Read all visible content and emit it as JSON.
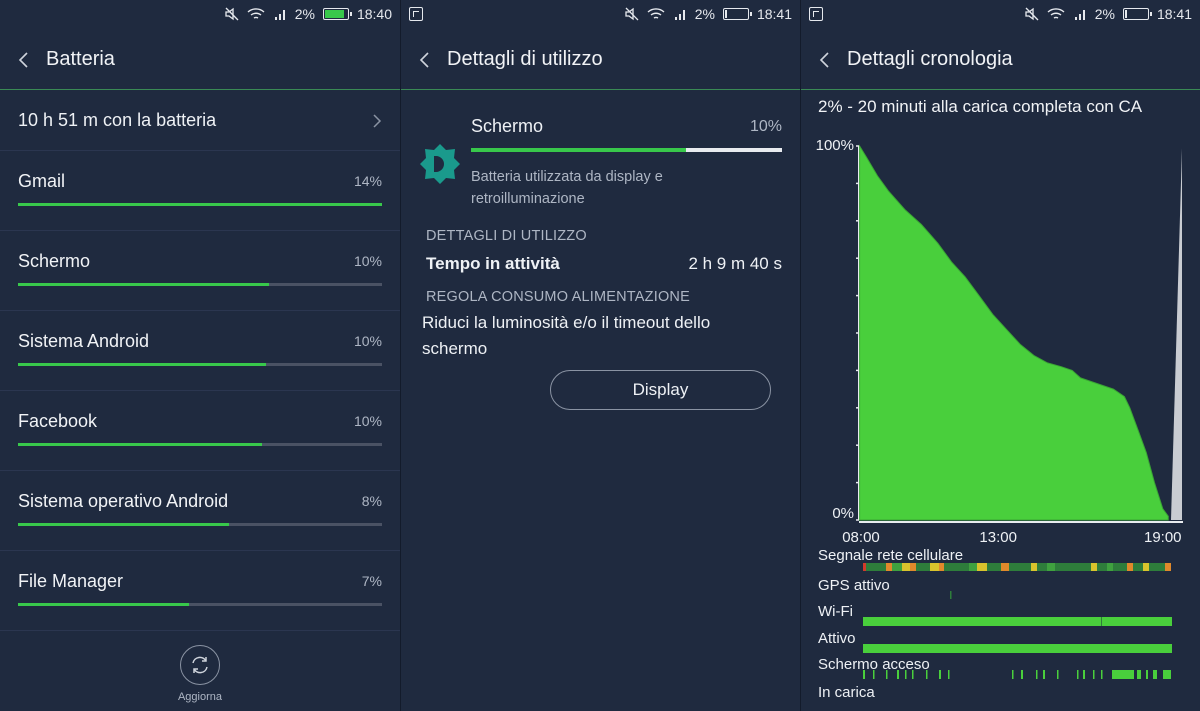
{
  "status": {
    "battery_pct": "2%",
    "panels": [
      {
        "time": "18:40",
        "battery_level": 0.9,
        "battery_color": "#38c84b"
      },
      {
        "time": "18:41",
        "battery_level": 0.02,
        "battery_color": "#e6e9ee"
      },
      {
        "time": "18:41",
        "battery_level": 0.02,
        "battery_color": "#e6e9ee"
      }
    ]
  },
  "colors": {
    "accent": "#38c84b",
    "background": "#1f2a3f",
    "muted_text": "#aeb6c4",
    "track": "#4a5264"
  },
  "battery_screen": {
    "title": "Batteria",
    "summary": "10 h 51 m con la batteria",
    "apps": [
      {
        "name": "Gmail",
        "percent": "14%",
        "level": 1.0
      },
      {
        "name": "Schermo",
        "percent": "10%",
        "level": 0.69
      },
      {
        "name": "Sistema Android",
        "percent": "10%",
        "level": 0.68
      },
      {
        "name": "Facebook",
        "percent": "10%",
        "level": 0.67
      },
      {
        "name": "Sistema operativo Android",
        "percent": "8%",
        "level": 0.58
      },
      {
        "name": "File Manager",
        "percent": "7%",
        "level": 0.47
      }
    ],
    "refresh_label": "Aggiorna"
  },
  "usage_screen": {
    "title": "Dettagli di utilizzo",
    "item_name": "Schermo",
    "item_percent": "10%",
    "item_level": 0.69,
    "item_description": "Batteria utilizzata da display e retroilluminazione",
    "section_usage": "DETTAGLI DI UTILIZZO",
    "active_time_label": "Tempo in attività",
    "active_time_value": "2 h 9 m 40 s",
    "section_power": "REGOLA CONSUMO ALIMENTAZIONE",
    "power_tip": "Riduci la luminosità e/o il timeout dello schermo",
    "display_button": "Display"
  },
  "history_screen": {
    "title": "Dettagli cronologia",
    "summary": "2% - 20 minuti alla carica completa con CA",
    "y_max_label": "100%",
    "y_min_label": "0%",
    "x_labels": [
      "08:00",
      "13:00",
      "19:00"
    ],
    "rows": [
      "Segnale rete cellulare",
      "GPS attivo",
      "Wi-Fi",
      "Attivo",
      "Schermo acceso",
      "In carica"
    ]
  },
  "chart_data": {
    "type": "area",
    "title": "",
    "xlabel": "",
    "ylabel": "",
    "x_ticks": [
      "08:00",
      "13:00",
      "19:00"
    ],
    "y_ticks": [
      "0%",
      "100%"
    ],
    "ylim": [
      0,
      100
    ],
    "xlim_hours": [
      8,
      19.3
    ],
    "series": [
      {
        "name": "",
        "color": "#49cf3c",
        "x_hours": [
          7.95,
          8.2,
          8.6,
          9.0,
          9.6,
          10.2,
          10.8,
          11.3,
          11.8,
          12.3,
          12.8,
          13.3,
          13.8,
          14.3,
          14.8,
          15.3,
          15.7,
          16.0,
          16.4,
          16.8,
          17.2,
          17.6,
          17.8,
          18.1,
          18.4,
          18.7,
          19.0,
          19.2
        ],
        "values": [
          100,
          97,
          92,
          88,
          83,
          79,
          74,
          69,
          65,
          60,
          55,
          51,
          47,
          44,
          42,
          41,
          40,
          38,
          37,
          36,
          35,
          33,
          30,
          24,
          18,
          10,
          3,
          1
        ]
      }
    ],
    "annotation": "charging spike at end (gray)",
    "grid": false,
    "legend": "none"
  },
  "event_rows": {
    "signal_colors": [
      "#2e7d3b",
      "#d9c32c",
      "#e0892b",
      "#d23b2b",
      "#3fa13f"
    ],
    "gps_color": "#2e7d3b",
    "wifi_color": "#49cf3c",
    "active_color": "#49cf3c",
    "screen_color": "#49cf3c"
  }
}
